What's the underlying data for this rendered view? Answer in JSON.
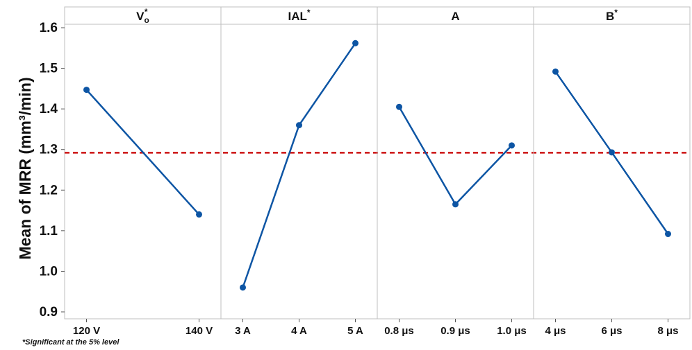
{
  "chart_data": {
    "type": "line",
    "title": "",
    "ylabel": "Mean of MRR (mm³/min)",
    "ylim": [
      0.9,
      1.6
    ],
    "yticks": [
      "0.9",
      "1.0",
      "1.1",
      "1.2",
      "1.3",
      "1.4",
      "1.5",
      "1.6"
    ],
    "mean_line": 1.292,
    "footnote": "*Significant at the 5% level",
    "colors": {
      "series": "#0d55a4",
      "mean_line": "#cc1111",
      "grid": "#bfbfbf"
    },
    "panels": [
      {
        "title": "V",
        "title_sub": "o",
        "title_sup": "*",
        "categories": [
          "120 V",
          "140 V"
        ],
        "values": [
          1.447,
          1.14
        ]
      },
      {
        "title": "IAL",
        "title_sup": "*",
        "categories": [
          "3 A",
          "4 A",
          "5 A"
        ],
        "values": [
          0.96,
          1.36,
          1.562
        ]
      },
      {
        "title": "A",
        "title_sup": "",
        "categories": [
          "0.8 μs",
          "0.9 μs",
          "1.0 μs"
        ],
        "values": [
          1.405,
          1.165,
          1.31
        ]
      },
      {
        "title": "B",
        "title_sup": "*",
        "categories": [
          "4 μs",
          "6 μs",
          "8 μs"
        ],
        "values": [
          1.492,
          1.293,
          1.092
        ]
      }
    ]
  }
}
